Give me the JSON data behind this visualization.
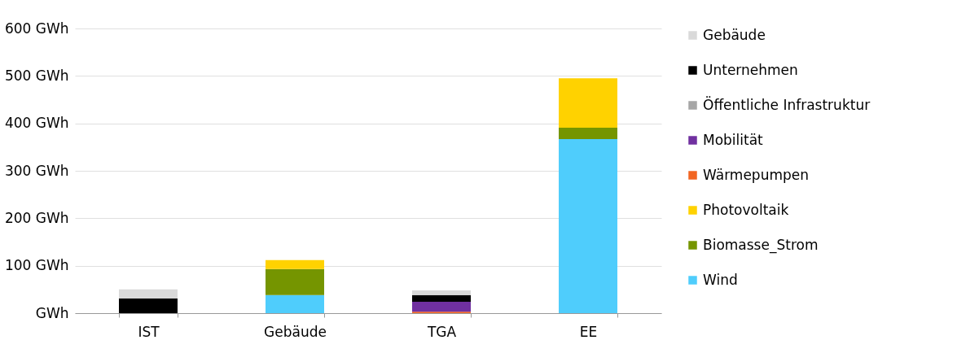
{
  "chart_data": {
    "type": "bar",
    "stacked": true,
    "categories": [
      "IST",
      "Gebäude",
      "TGA",
      "EE"
    ],
    "series": [
      {
        "name": "Wind",
        "color": "#4fcdfc",
        "values": [
          0,
          38,
          0,
          367
        ]
      },
      {
        "name": "Biomasse_Strom",
        "color": "#759500",
        "values": [
          0,
          55,
          0,
          24
        ]
      },
      {
        "name": "Photovoltaik",
        "color": "#ffd200",
        "values": [
          0,
          19,
          0,
          104
        ]
      },
      {
        "name": "Wärmepumpen",
        "color": "#f26522",
        "values": [
          0,
          0,
          3,
          0
        ]
      },
      {
        "name": "Mobilität",
        "color": "#7030a0",
        "values": [
          0,
          0,
          21,
          0
        ]
      },
      {
        "name": "Öffentliche Infrastruktur",
        "color": "#a6a6a6",
        "values": [
          0,
          0,
          0,
          0
        ]
      },
      {
        "name": "Unternehmen",
        "color": "#000000",
        "values": [
          31,
          0,
          14,
          0
        ]
      },
      {
        "name": "Gebäude",
        "color": "#d9d9d9",
        "values": [
          19,
          0,
          10,
          0
        ]
      }
    ],
    "ylim": [
      0,
      600
    ],
    "yticks": [
      {
        "value": 0,
        "label": "GWh"
      },
      {
        "value": 100,
        "label": "100 GWh"
      },
      {
        "value": 200,
        "label": "200 GWh"
      },
      {
        "value": 300,
        "label": "300 GWh"
      },
      {
        "value": 400,
        "label": "400 GWh"
      },
      {
        "value": 500,
        "label": "500 GWh"
      },
      {
        "value": 600,
        "label": "600 GWh"
      }
    ],
    "grid": "y",
    "legend": "right"
  }
}
